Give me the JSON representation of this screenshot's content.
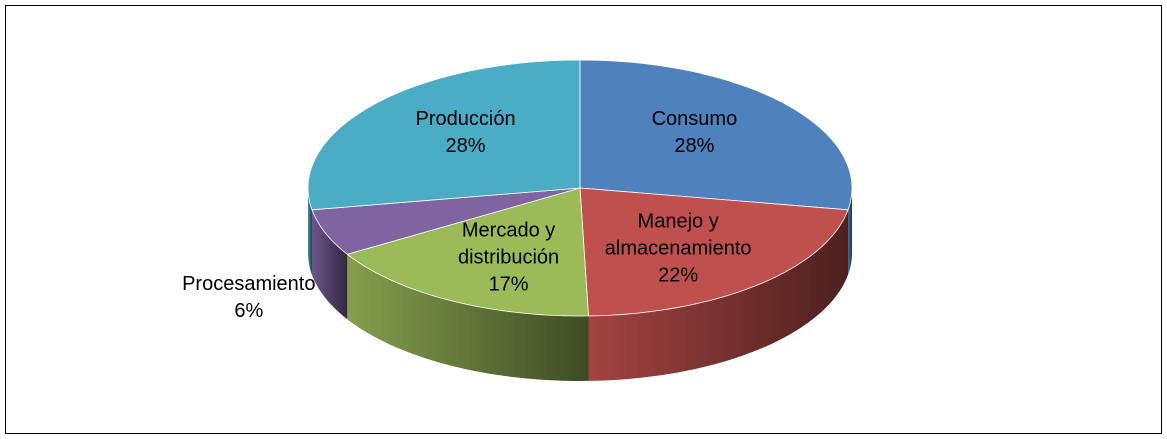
{
  "chart_data": {
    "type": "pie",
    "categories": [
      "Consumo",
      "Manejo y almacenamiento",
      "Mercado y distribución",
      "Procesamiento",
      "Producción"
    ],
    "values": [
      28,
      22,
      17,
      6,
      28
    ],
    "value_labels": [
      "28%",
      "22%",
      "17%",
      "6%",
      "28%"
    ],
    "colors": [
      "#4f81bd",
      "#c0504d",
      "#9bbb59",
      "#8064a2",
      "#4bacc6"
    ]
  }
}
